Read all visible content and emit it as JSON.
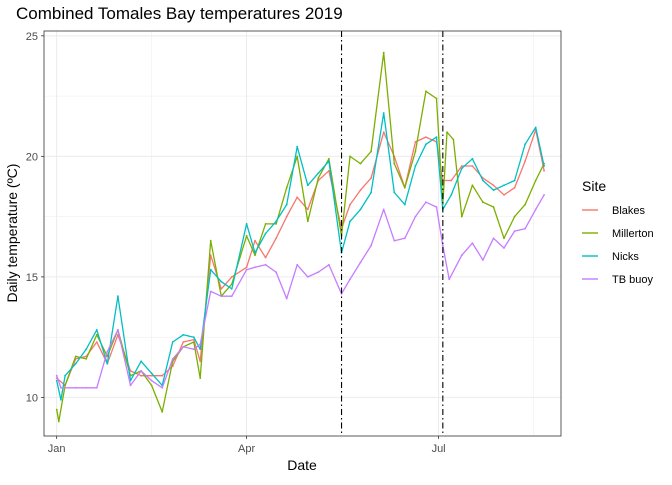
{
  "chart_data": {
    "type": "line",
    "title": "Combined Tomales Bay temperatures 2019",
    "xlabel": "Date",
    "ylabel": "Daily temperature (ºC)",
    "x_is_day_of_year": true,
    "xlim": [
      "2018-12-26",
      "2019-08-28"
    ],
    "ylim": [
      8.4,
      25.2
    ],
    "x_ticks": [
      {
        "label": "Jan",
        "date": "2019-01-01"
      },
      {
        "label": "Apr",
        "date": "2019-04-01"
      },
      {
        "label": "Jul",
        "date": "2019-07-01"
      }
    ],
    "x_minor_ticks": [
      "2019-02-15",
      "2019-05-16",
      "2019-08-15"
    ],
    "y_ticks": [
      10,
      15,
      20,
      25
    ],
    "y_minor_ticks": [
      12.5,
      17.5,
      22.5
    ],
    "grid": true,
    "vlines": [
      {
        "date": "2019-05-16",
        "style": "dashdot",
        "color": "#000000"
      },
      {
        "date": "2019-07-03",
        "style": "dashdot",
        "color": "#000000"
      }
    ],
    "legend": {
      "title": "Site",
      "placement": "right"
    },
    "series": [
      {
        "name": "Blakes",
        "color": "#F8766D",
        "points": [
          [
            "2019-01-01",
            10.8
          ],
          [
            "2019-01-05",
            10.5
          ],
          [
            "2019-01-10",
            11.6
          ],
          [
            "2019-01-15",
            11.7
          ],
          [
            "2019-01-20",
            12.3
          ],
          [
            "2019-01-25",
            11.4
          ],
          [
            "2019-01-30",
            12.6
          ],
          [
            "2019-02-05",
            11.1
          ],
          [
            "2019-02-10",
            10.9
          ],
          [
            "2019-02-15",
            10.9
          ],
          [
            "2019-02-20",
            10.9
          ],
          [
            "2019-02-25",
            11.3
          ],
          [
            "2019-03-02",
            12.3
          ],
          [
            "2019-03-07",
            12.4
          ],
          [
            "2019-03-10",
            11.5
          ],
          [
            "2019-03-15",
            15.9
          ],
          [
            "2019-03-20",
            14.5
          ],
          [
            "2019-03-25",
            15.0
          ],
          [
            "2019-04-01",
            15.4
          ],
          [
            "2019-04-05",
            16.5
          ],
          [
            "2019-04-10",
            15.8
          ],
          [
            "2019-04-15",
            16.6
          ],
          [
            "2019-04-20",
            17.5
          ],
          [
            "2019-04-25",
            18.3
          ],
          [
            "2019-04-30",
            17.8
          ],
          [
            "2019-05-05",
            19.0
          ],
          [
            "2019-05-10",
            19.4
          ],
          [
            "2019-05-16",
            17.0
          ],
          [
            "2019-05-20",
            18.0
          ],
          [
            "2019-05-25",
            18.6
          ],
          [
            "2019-05-30",
            19.1
          ],
          [
            "2019-06-05",
            21.0
          ],
          [
            "2019-06-10",
            20.0
          ],
          [
            "2019-06-15",
            18.7
          ],
          [
            "2019-06-20",
            20.6
          ],
          [
            "2019-06-25",
            20.8
          ],
          [
            "2019-06-30",
            20.6
          ],
          [
            "2019-07-03",
            19.0
          ],
          [
            "2019-07-07",
            19.0
          ],
          [
            "2019-07-12",
            19.6
          ],
          [
            "2019-07-17",
            19.6
          ],
          [
            "2019-07-22",
            19.1
          ],
          [
            "2019-07-27",
            18.8
          ],
          [
            "2019-08-01",
            18.4
          ],
          [
            "2019-08-06",
            18.7
          ],
          [
            "2019-08-11",
            19.8
          ],
          [
            "2019-08-16",
            21.1
          ],
          [
            "2019-08-20",
            19.4
          ]
        ]
      },
      {
        "name": "Millerton",
        "color": "#7CAE00",
        "points": [
          [
            "2019-01-01",
            9.5
          ],
          [
            "2019-01-02",
            9.0
          ],
          [
            "2019-01-05",
            10.5
          ],
          [
            "2019-01-10",
            11.7
          ],
          [
            "2019-01-15",
            11.6
          ],
          [
            "2019-01-20",
            12.6
          ],
          [
            "2019-01-25",
            11.7
          ],
          [
            "2019-01-30",
            12.8
          ],
          [
            "2019-02-05",
            10.9
          ],
          [
            "2019-02-10",
            11.1
          ],
          [
            "2019-02-15",
            10.5
          ],
          [
            "2019-02-20",
            9.4
          ],
          [
            "2019-02-25",
            11.5
          ],
          [
            "2019-03-02",
            12.1
          ],
          [
            "2019-03-07",
            12.3
          ],
          [
            "2019-03-10",
            10.8
          ],
          [
            "2019-03-15",
            16.5
          ],
          [
            "2019-03-20",
            14.2
          ],
          [
            "2019-03-25",
            14.7
          ],
          [
            "2019-04-01",
            16.7
          ],
          [
            "2019-04-05",
            15.9
          ],
          [
            "2019-04-10",
            17.2
          ],
          [
            "2019-04-15",
            17.2
          ],
          [
            "2019-04-20",
            18.7
          ],
          [
            "2019-04-25",
            20.0
          ],
          [
            "2019-04-30",
            17.3
          ],
          [
            "2019-05-05",
            19.1
          ],
          [
            "2019-05-10",
            19.9
          ],
          [
            "2019-05-16",
            16.7
          ],
          [
            "2019-05-20",
            20.0
          ],
          [
            "2019-05-25",
            19.7
          ],
          [
            "2019-05-30",
            20.2
          ],
          [
            "2019-06-05",
            24.3
          ],
          [
            "2019-06-10",
            19.7
          ],
          [
            "2019-06-15",
            18.7
          ],
          [
            "2019-06-20",
            20.2
          ],
          [
            "2019-06-25",
            22.7
          ],
          [
            "2019-06-30",
            22.4
          ],
          [
            "2019-07-03",
            18.0
          ],
          [
            "2019-07-05",
            21.0
          ],
          [
            "2019-07-08",
            20.7
          ],
          [
            "2019-07-12",
            17.5
          ],
          [
            "2019-07-17",
            18.8
          ],
          [
            "2019-07-22",
            18.1
          ],
          [
            "2019-07-27",
            17.9
          ],
          [
            "2019-08-01",
            16.6
          ],
          [
            "2019-08-06",
            17.5
          ],
          [
            "2019-08-11",
            18.0
          ],
          [
            "2019-08-16",
            19.0
          ],
          [
            "2019-08-20",
            19.7
          ]
        ]
      },
      {
        "name": "Nicks",
        "color": "#00BFC4",
        "points": [
          [
            "2019-01-01",
            10.7
          ],
          [
            "2019-01-03",
            9.9
          ],
          [
            "2019-01-05",
            10.9
          ],
          [
            "2019-01-10",
            11.4
          ],
          [
            "2019-01-15",
            12.0
          ],
          [
            "2019-01-20",
            12.8
          ],
          [
            "2019-01-25",
            11.4
          ],
          [
            "2019-01-30",
            14.2
          ],
          [
            "2019-02-05",
            10.7
          ],
          [
            "2019-02-10",
            11.5
          ],
          [
            "2019-02-15",
            11.0
          ],
          [
            "2019-02-20",
            10.5
          ],
          [
            "2019-02-25",
            12.3
          ],
          [
            "2019-03-02",
            12.6
          ],
          [
            "2019-03-07",
            12.5
          ],
          [
            "2019-03-10",
            12.0
          ],
          [
            "2019-03-15",
            15.3
          ],
          [
            "2019-03-20",
            14.8
          ],
          [
            "2019-03-25",
            14.5
          ],
          [
            "2019-04-01",
            17.2
          ],
          [
            "2019-04-05",
            16.0
          ],
          [
            "2019-04-10",
            16.8
          ],
          [
            "2019-04-15",
            17.3
          ],
          [
            "2019-04-20",
            18.0
          ],
          [
            "2019-04-25",
            20.4
          ],
          [
            "2019-04-30",
            18.8
          ],
          [
            "2019-05-05",
            19.3
          ],
          [
            "2019-05-10",
            19.8
          ],
          [
            "2019-05-16",
            16.0
          ],
          [
            "2019-05-20",
            17.3
          ],
          [
            "2019-05-25",
            17.8
          ],
          [
            "2019-05-30",
            18.5
          ],
          [
            "2019-06-05",
            21.8
          ],
          [
            "2019-06-10",
            18.5
          ],
          [
            "2019-06-15",
            18.0
          ],
          [
            "2019-06-20",
            19.6
          ],
          [
            "2019-06-25",
            20.5
          ],
          [
            "2019-06-30",
            20.8
          ],
          [
            "2019-07-03",
            17.8
          ],
          [
            "2019-07-07",
            18.4
          ],
          [
            "2019-07-12",
            19.5
          ],
          [
            "2019-07-17",
            19.9
          ],
          [
            "2019-07-22",
            19.0
          ],
          [
            "2019-07-27",
            18.6
          ],
          [
            "2019-08-01",
            18.8
          ],
          [
            "2019-08-06",
            19.0
          ],
          [
            "2019-08-11",
            20.5
          ],
          [
            "2019-08-16",
            21.2
          ],
          [
            "2019-08-20",
            19.6
          ]
        ]
      },
      {
        "name": "TB buoy",
        "color": "#C77CFF",
        "points": [
          [
            "2019-01-01",
            10.9
          ],
          [
            "2019-01-03",
            10.4
          ],
          [
            "2019-01-05",
            10.4
          ],
          [
            "2019-01-10",
            10.4
          ],
          [
            "2019-01-15",
            10.4
          ],
          [
            "2019-01-20",
            10.4
          ],
          [
            "2019-01-25",
            11.9
          ],
          [
            "2019-01-30",
            12.8
          ],
          [
            "2019-02-05",
            10.5
          ],
          [
            "2019-02-10",
            11.1
          ],
          [
            "2019-02-15",
            10.7
          ],
          [
            "2019-02-20",
            10.4
          ],
          [
            "2019-02-25",
            11.6
          ],
          [
            "2019-03-02",
            12.1
          ],
          [
            "2019-03-07",
            12.0
          ],
          [
            "2019-03-10",
            12.2
          ],
          [
            "2019-03-15",
            14.4
          ],
          [
            "2019-03-20",
            14.2
          ],
          [
            "2019-03-25",
            14.2
          ],
          [
            "2019-04-01",
            15.3
          ],
          [
            "2019-04-05",
            15.4
          ],
          [
            "2019-04-10",
            15.5
          ],
          [
            "2019-04-15",
            15.2
          ],
          [
            "2019-04-20",
            14.1
          ],
          [
            "2019-04-25",
            15.5
          ],
          [
            "2019-04-30",
            15.0
          ],
          [
            "2019-05-05",
            15.2
          ],
          [
            "2019-05-10",
            15.5
          ],
          [
            "2019-05-16",
            14.3
          ],
          [
            "2019-05-20",
            14.9
          ],
          [
            "2019-05-25",
            15.6
          ],
          [
            "2019-05-30",
            16.3
          ],
          [
            "2019-06-05",
            17.8
          ],
          [
            "2019-06-10",
            16.5
          ],
          [
            "2019-06-15",
            16.6
          ],
          [
            "2019-06-20",
            17.5
          ],
          [
            "2019-06-25",
            18.1
          ],
          [
            "2019-06-30",
            17.9
          ],
          [
            "2019-07-03",
            16.3
          ],
          [
            "2019-07-06",
            14.9
          ],
          [
            "2019-07-12",
            15.9
          ],
          [
            "2019-07-17",
            16.4
          ],
          [
            "2019-07-22",
            15.7
          ],
          [
            "2019-07-27",
            16.6
          ],
          [
            "2019-08-01",
            16.2
          ],
          [
            "2019-08-06",
            16.9
          ],
          [
            "2019-08-11",
            17.0
          ],
          [
            "2019-08-16",
            17.8
          ],
          [
            "2019-08-20",
            18.4
          ]
        ]
      }
    ]
  }
}
